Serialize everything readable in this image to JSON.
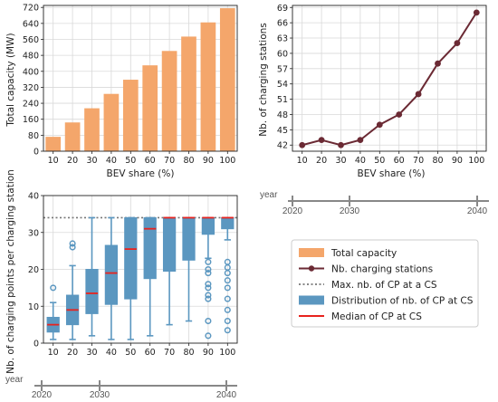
{
  "colors": {
    "bar": "#f4a66b",
    "line": "#6b2a34",
    "box": "#5b97c0",
    "median": "#e8231e",
    "max_line": "#777777",
    "timeline": "#888888"
  },
  "chart_data": [
    {
      "id": "capacity",
      "type": "bar",
      "xlabel": "BEV share (%)",
      "ylabel": "Total capacity (MW)",
      "categories": [
        "10",
        "20",
        "30",
        "40",
        "50",
        "60",
        "70",
        "80",
        "90",
        "100"
      ],
      "values": [
        72,
        144,
        215,
        287,
        358,
        430,
        502,
        574,
        645,
        716
      ],
      "ylim": [
        0,
        730
      ],
      "yticks": [
        0,
        80,
        160,
        240,
        320,
        400,
        480,
        560,
        640,
        720
      ],
      "grid": true
    },
    {
      "id": "stations",
      "type": "line",
      "xlabel": "BEV share (%)",
      "ylabel": "Nb. of charging stations",
      "categories": [
        "10",
        "20",
        "30",
        "40",
        "50",
        "60",
        "70",
        "80",
        "90",
        "100"
      ],
      "values": [
        42,
        43,
        42,
        43,
        46,
        48,
        52,
        58,
        62,
        68
      ],
      "ylim": [
        40.8,
        69.4
      ],
      "yticks": [
        42,
        45,
        48,
        51,
        54,
        57,
        60,
        63,
        66,
        69
      ],
      "grid": true
    },
    {
      "id": "cp_per_cs",
      "type": "box",
      "xlabel": "",
      "ylabel": "Nb. of charging points per charging station",
      "categories": [
        "10",
        "20",
        "30",
        "40",
        "50",
        "60",
        "70",
        "80",
        "90",
        "100"
      ],
      "ylim": [
        0,
        40
      ],
      "yticks": [
        0,
        10,
        20,
        30,
        40
      ],
      "max_cp_per_cs": 34,
      "boxes": [
        {
          "whislo": 1,
          "q1": 3,
          "med": 5,
          "q3": 7,
          "whishi": 11,
          "fliers": [
            15
          ]
        },
        {
          "whislo": 1,
          "q1": 5,
          "med": 9,
          "q3": 13,
          "whishi": 21,
          "fliers": [
            26,
            27
          ]
        },
        {
          "whislo": 2,
          "q1": 8,
          "med": 13.5,
          "q3": 20,
          "whishi": 34,
          "fliers": []
        },
        {
          "whislo": 1,
          "q1": 10.5,
          "med": 19,
          "q3": 26.5,
          "whishi": 34,
          "fliers": []
        },
        {
          "whislo": 1,
          "q1": 12,
          "med": 25.5,
          "q3": 34,
          "whishi": 34,
          "fliers": []
        },
        {
          "whislo": 2,
          "q1": 17.5,
          "med": 31,
          "q3": 34,
          "whishi": 34,
          "fliers": []
        },
        {
          "whislo": 5,
          "q1": 19.5,
          "med": 34,
          "q3": 34,
          "whishi": 34,
          "fliers": []
        },
        {
          "whislo": 6,
          "q1": 22.5,
          "med": 34,
          "q3": 34,
          "whishi": 34,
          "fliers": []
        },
        {
          "whislo": 23,
          "q1": 29.5,
          "med": 34,
          "q3": 34,
          "whishi": 34,
          "fliers": [
            2,
            6,
            12,
            13,
            15,
            16,
            19,
            20,
            22
          ]
        },
        {
          "whislo": 28,
          "q1": 31,
          "med": 34,
          "q3": 34,
          "whishi": 34,
          "fliers": [
            3.5,
            6,
            9,
            12,
            15,
            17,
            19,
            20.5,
            22
          ]
        }
      ]
    }
  ],
  "timelines": [
    {
      "id": "timeline-right",
      "label": "year",
      "ticks": [
        "2020",
        "2030",
        "2040"
      ]
    },
    {
      "id": "timeline-left",
      "label": "year",
      "ticks": [
        "2020",
        "2030",
        "2040"
      ]
    }
  ],
  "legend": [
    {
      "kind": "bar",
      "label": "Total capacity"
    },
    {
      "kind": "line",
      "label": "Nb. charging stations"
    },
    {
      "kind": "dotted",
      "label": "Max. nb. of CP at a CS"
    },
    {
      "kind": "box",
      "label": "Distribution of nb. of CP at CS"
    },
    {
      "kind": "median",
      "label": "Median of CP at CS"
    }
  ]
}
